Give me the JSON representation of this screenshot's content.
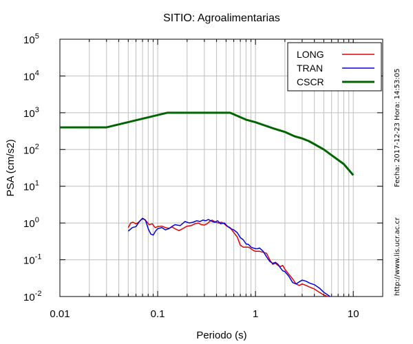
{
  "chart_data": {
    "type": "line",
    "title": "SITIO: Agroalimentarias",
    "xlabel": "Periodo (s)",
    "ylabel": "PSA (cm/s2)",
    "xscale": "log",
    "yscale": "log",
    "xlim": [
      0.01,
      20
    ],
    "ylim": [
      0.01,
      100000
    ],
    "grid": true,
    "legend_position": "top-right",
    "x_ticks": [
      {
        "value": 0.01,
        "label": "0.01"
      },
      {
        "value": 0.1,
        "label": "0.1"
      },
      {
        "value": 1,
        "label": "1"
      },
      {
        "value": 10,
        "label": "10"
      }
    ],
    "y_ticks": [
      {
        "value": 0.01,
        "base": "10",
        "exp": "-2"
      },
      {
        "value": 0.1,
        "base": "10",
        "exp": "-1"
      },
      {
        "value": 1,
        "base": "10",
        "exp": "0"
      },
      {
        "value": 10,
        "base": "10",
        "exp": "1"
      },
      {
        "value": 100,
        "base": "10",
        "exp": "2"
      },
      {
        "value": 1000,
        "base": "10",
        "exp": "3"
      },
      {
        "value": 10000,
        "base": "10",
        "exp": "4"
      },
      {
        "value": 100000,
        "base": "10",
        "exp": "5"
      }
    ],
    "series": [
      {
        "name": "LONG",
        "color": "#e00000",
        "width": 1.5,
        "points": [
          [
            0.05,
            0.75
          ],
          [
            0.053,
            1.0
          ],
          [
            0.056,
            1.05
          ],
          [
            0.06,
            0.95
          ],
          [
            0.064,
            1.05
          ],
          [
            0.068,
            1.25
          ],
          [
            0.072,
            1.3
          ],
          [
            0.077,
            1.1
          ],
          [
            0.082,
            0.9
          ],
          [
            0.088,
            0.95
          ],
          [
            0.094,
            0.75
          ],
          [
            0.1,
            0.8
          ],
          [
            0.11,
            0.82
          ],
          [
            0.12,
            0.75
          ],
          [
            0.13,
            0.72
          ],
          [
            0.14,
            0.78
          ],
          [
            0.15,
            0.7
          ],
          [
            0.165,
            0.62
          ],
          [
            0.18,
            0.7
          ],
          [
            0.2,
            0.82
          ],
          [
            0.22,
            0.85
          ],
          [
            0.24,
            0.95
          ],
          [
            0.26,
            1.0
          ],
          [
            0.28,
            0.9
          ],
          [
            0.3,
            0.88
          ],
          [
            0.32,
            0.95
          ],
          [
            0.34,
            1.1
          ],
          [
            0.36,
            1.2
          ],
          [
            0.39,
            1.05
          ],
          [
            0.42,
            1.0
          ],
          [
            0.45,
            1.05
          ],
          [
            0.48,
            0.95
          ],
          [
            0.5,
            0.85
          ],
          [
            0.55,
            0.75
          ],
          [
            0.6,
            0.55
          ],
          [
            0.65,
            0.42
          ],
          [
            0.7,
            0.25
          ],
          [
            0.75,
            0.22
          ],
          [
            0.8,
            0.22
          ],
          [
            0.85,
            0.22
          ],
          [
            0.9,
            0.2
          ],
          [
            0.95,
            0.18
          ],
          [
            1.0,
            0.17
          ],
          [
            1.1,
            0.17
          ],
          [
            1.2,
            0.16
          ],
          [
            1.3,
            0.15
          ],
          [
            1.4,
            0.1
          ],
          [
            1.5,
            0.075
          ],
          [
            1.6,
            0.08
          ],
          [
            1.7,
            0.07
          ],
          [
            1.8,
            0.065
          ],
          [
            1.9,
            0.07
          ],
          [
            2.0,
            0.055
          ],
          [
            2.2,
            0.04
          ],
          [
            2.4,
            0.03
          ],
          [
            2.6,
            0.022
          ],
          [
            2.8,
            0.02
          ],
          [
            3.0,
            0.022
          ],
          [
            3.3,
            0.02
          ],
          [
            3.6,
            0.018
          ],
          [
            4.0,
            0.016
          ],
          [
            4.5,
            0.013
          ],
          [
            5.0,
            0.011
          ],
          [
            5.5,
            0.01
          ]
        ]
      },
      {
        "name": "TRAN",
        "color": "#0000e0",
        "width": 1.5,
        "points": [
          [
            0.05,
            0.6
          ],
          [
            0.055,
            0.75
          ],
          [
            0.06,
            0.8
          ],
          [
            0.065,
            1.1
          ],
          [
            0.07,
            1.35
          ],
          [
            0.075,
            1.2
          ],
          [
            0.08,
            0.7
          ],
          [
            0.085,
            0.5
          ],
          [
            0.09,
            0.47
          ],
          [
            0.095,
            0.6
          ],
          [
            0.1,
            0.7
          ],
          [
            0.11,
            0.75
          ],
          [
            0.12,
            0.65
          ],
          [
            0.13,
            0.7
          ],
          [
            0.14,
            0.8
          ],
          [
            0.15,
            0.9
          ],
          [
            0.17,
            0.85
          ],
          [
            0.19,
            1.1
          ],
          [
            0.21,
            1.0
          ],
          [
            0.23,
            1.05
          ],
          [
            0.25,
            1.15
          ],
          [
            0.27,
            1.1
          ],
          [
            0.29,
            1.2
          ],
          [
            0.31,
            1.15
          ],
          [
            0.33,
            1.25
          ],
          [
            0.36,
            1.1
          ],
          [
            0.38,
            1.05
          ],
          [
            0.41,
            1.15
          ],
          [
            0.44,
            0.95
          ],
          [
            0.48,
            1.0
          ],
          [
            0.52,
            0.8
          ],
          [
            0.56,
            0.7
          ],
          [
            0.6,
            0.65
          ],
          [
            0.65,
            0.55
          ],
          [
            0.7,
            0.4
          ],
          [
            0.75,
            0.35
          ],
          [
            0.8,
            0.27
          ],
          [
            0.85,
            0.26
          ],
          [
            0.9,
            0.22
          ],
          [
            0.95,
            0.21
          ],
          [
            1.0,
            0.2
          ],
          [
            1.05,
            0.2
          ],
          [
            1.1,
            0.21
          ],
          [
            1.2,
            0.17
          ],
          [
            1.3,
            0.12
          ],
          [
            1.4,
            0.09
          ],
          [
            1.5,
            0.08
          ],
          [
            1.6,
            0.085
          ],
          [
            1.7,
            0.075
          ],
          [
            1.8,
            0.06
          ],
          [
            1.9,
            0.05
          ],
          [
            2.0,
            0.048
          ],
          [
            2.2,
            0.035
          ],
          [
            2.4,
            0.024
          ],
          [
            2.6,
            0.022
          ],
          [
            2.8,
            0.025
          ],
          [
            3.0,
            0.028
          ],
          [
            3.3,
            0.026
          ],
          [
            3.6,
            0.023
          ],
          [
            4.0,
            0.021
          ],
          [
            4.5,
            0.017
          ],
          [
            5.0,
            0.013
          ],
          [
            5.5,
            0.011
          ],
          [
            5.8,
            0.01
          ]
        ]
      },
      {
        "name": "CSCR",
        "color": "#006400",
        "width": 3,
        "points": [
          [
            0.01,
            400
          ],
          [
            0.03,
            400
          ],
          [
            0.125,
            1000
          ],
          [
            0.55,
            1000
          ],
          [
            0.8,
            650
          ],
          [
            1.0,
            550
          ],
          [
            1.5,
            380
          ],
          [
            2.0,
            300
          ],
          [
            2.5,
            230
          ],
          [
            3.0,
            200
          ],
          [
            3.5,
            170
          ],
          [
            4.0,
            140
          ],
          [
            5.0,
            100
          ],
          [
            6.0,
            70
          ],
          [
            8.0,
            40
          ],
          [
            10.0,
            20
          ]
        ]
      }
    ]
  },
  "side_labels": {
    "timestamp": "Fecha: 2017-12-23 Hora: 14:53:05",
    "url": "http://www.lis.ucr.ac.cr"
  }
}
